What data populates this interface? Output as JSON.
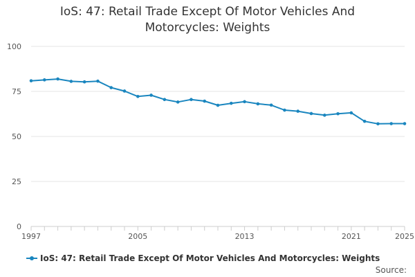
{
  "chart_data": {
    "type": "line",
    "title_lines": [
      "IoS: 47: Retail Trade Except Of Motor Vehicles And",
      "Motorcycles: Weights"
    ],
    "xlabel": "",
    "ylabel": "",
    "x": [
      1997,
      1998,
      1999,
      2000,
      2001,
      2002,
      2003,
      2004,
      2005,
      2006,
      2007,
      2008,
      2009,
      2010,
      2011,
      2012,
      2013,
      2014,
      2015,
      2016,
      2017,
      2018,
      2019,
      2020,
      2021,
      2022,
      2023,
      2024,
      2025
    ],
    "series": [
      {
        "name": "IoS: 47: Retail Trade Except Of Motor Vehicles And Motorcycles: Weights",
        "color": "#1a86bf",
        "values": [
          80.9,
          81.4,
          81.9,
          80.6,
          80.3,
          80.7,
          77.1,
          75.2,
          72.2,
          72.9,
          70.5,
          69.1,
          70.5,
          69.6,
          67.3,
          68.4,
          69.3,
          68.1,
          67.4,
          64.6,
          64.0,
          62.7,
          61.8,
          62.6,
          63.1,
          58.4,
          57.0,
          57.1,
          57.1
        ]
      }
    ],
    "ylim": [
      0,
      100
    ],
    "xlim": [
      1997,
      2025
    ],
    "yticks": [
      0,
      25,
      50,
      75,
      100
    ],
    "xticks": [
      1997,
      2005,
      2013,
      2021,
      2025
    ],
    "grid": true,
    "legend": "bottom-left",
    "source_label": "Source:"
  }
}
